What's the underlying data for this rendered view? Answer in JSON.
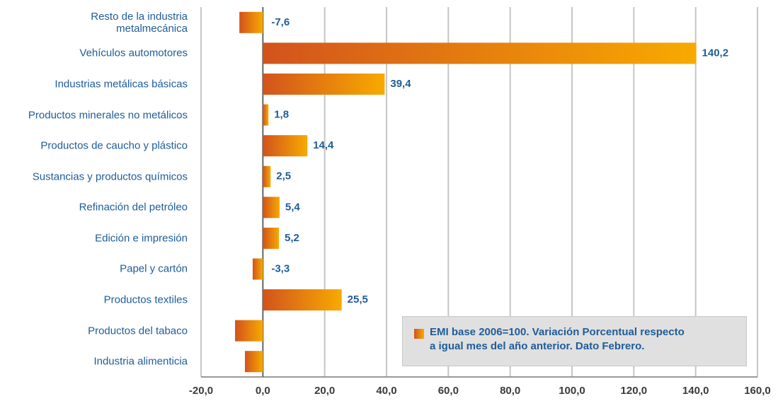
{
  "chart_data": {
    "type": "bar",
    "orientation": "horizontal",
    "categories": [
      "Resto de la industria\nmetalmecánica",
      "Vehículos automotores",
      "Industrias metálicas básicas",
      "Productos minerales no metálicos",
      "Productos de caucho y plástico",
      "Sustancias y productos químicos",
      "Refinación del petróleo",
      "Edición e impresión",
      "Papel y cartón",
      "Productos textiles",
      "Productos del tabaco",
      "Industria alimenticia"
    ],
    "series": [
      {
        "name": "EMI base 2006=100. Variación Porcentual respecto\na igual mes del año anterior. Dato Febrero.",
        "color": [
          "#d2531d",
          "#f8aa00"
        ],
        "values": [
          -7.6,
          140.2,
          39.4,
          1.8,
          14.4,
          2.5,
          5.4,
          5.2,
          -3.3,
          25.5,
          -9.0,
          -5.8
        ],
        "value_labels": [
          "-7,6",
          "140,2",
          "39,4",
          "1,8",
          "14,4",
          "2,5",
          "5,4",
          "5,2",
          "-3,3",
          "25,5",
          null,
          null
        ]
      }
    ],
    "xlim": [
      -20,
      160
    ],
    "xticks": [
      {
        "value": -20,
        "label": "-20,0"
      },
      {
        "value": 0,
        "label": "0,0"
      },
      {
        "value": 20,
        "label": "20,0"
      },
      {
        "value": 40,
        "label": "40,0"
      },
      {
        "value": 60,
        "label": "60,0"
      },
      {
        "value": 80,
        "label": "80,0"
      },
      {
        "value": 100,
        "label": "100,0"
      },
      {
        "value": 120,
        "label": "120,0"
      },
      {
        "value": 140,
        "label": "140,0"
      },
      {
        "value": 160,
        "label": "160,0"
      }
    ],
    "grid": true,
    "legend": "lower right"
  }
}
